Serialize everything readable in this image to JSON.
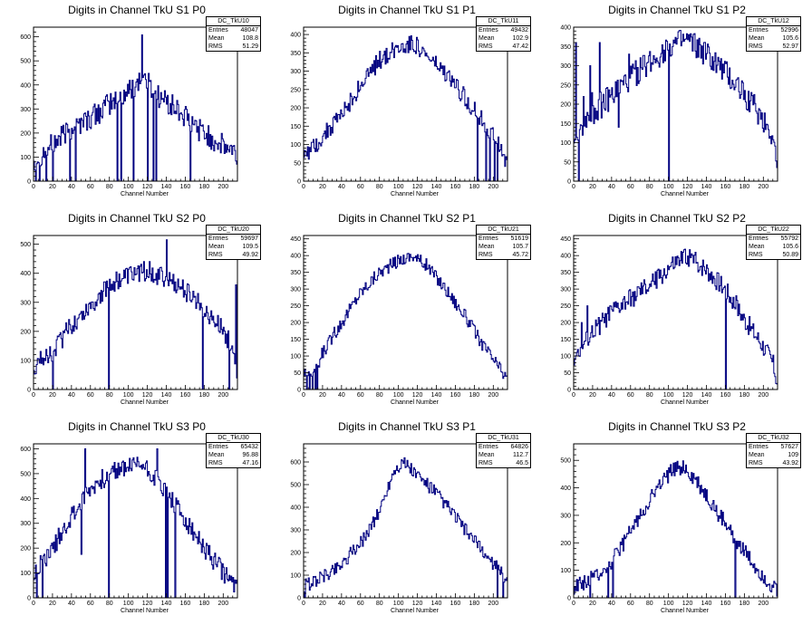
{
  "colors": {
    "histogram": "#000080",
    "axis": "#000000",
    "background": "#ffffff"
  },
  "stats_labels": {
    "entries": "Entries",
    "mean": "Mean",
    "rms": "RMS"
  },
  "chart_data": [
    {
      "type": "histogram",
      "title": "Digits in Channel TkU S1 P0",
      "xlabel": "Channel Number",
      "xlim": [
        0,
        215
      ],
      "ylim": [
        0,
        640
      ],
      "xticks": [
        0,
        20,
        40,
        60,
        80,
        100,
        120,
        140,
        160,
        180,
        200
      ],
      "yticks": [
        0,
        100,
        200,
        300,
        400,
        500,
        600
      ],
      "stats": {
        "name": "DC_TkU10",
        "entries": "48047",
        "mean": "108.8",
        "rms": "51.29"
      },
      "profile": [
        [
          0,
          90
        ],
        [
          20,
          150
        ],
        [
          40,
          220
        ],
        [
          60,
          260
        ],
        [
          80,
          320
        ],
        [
          100,
          370
        ],
        [
          115,
          440
        ],
        [
          130,
          360
        ],
        [
          150,
          300
        ],
        [
          170,
          230
        ],
        [
          190,
          170
        ],
        [
          210,
          120
        ],
        [
          215,
          100
        ]
      ],
      "noise": 50,
      "spikes": [
        [
          2,
          0
        ],
        [
          6,
          0
        ],
        [
          13,
          0
        ],
        [
          17,
          150
        ],
        [
          20,
          0
        ],
        [
          38,
          0
        ],
        [
          40,
          220
        ],
        [
          44,
          0
        ],
        [
          53,
          280
        ],
        [
          88,
          0
        ],
        [
          92,
          0
        ],
        [
          105,
          0
        ],
        [
          114,
          608
        ],
        [
          120,
          0
        ],
        [
          126,
          0
        ],
        [
          129,
          0
        ],
        [
          165,
          0
        ]
      ]
    },
    {
      "type": "histogram",
      "title": "Digits in Channel TkU S1 P1",
      "xlabel": "Channel Number",
      "xlim": [
        0,
        215
      ],
      "ylim": [
        0,
        420
      ],
      "xticks": [
        0,
        20,
        40,
        60,
        80,
        100,
        120,
        140,
        160,
        180,
        200
      ],
      "yticks": [
        0,
        50,
        100,
        150,
        200,
        250,
        300,
        350,
        400
      ],
      "stats": {
        "name": "DC_TkU11",
        "entries": "49432",
        "mean": "102.9",
        "rms": "47.42"
      },
      "profile": [
        [
          0,
          70
        ],
        [
          20,
          120
        ],
        [
          40,
          180
        ],
        [
          60,
          260
        ],
        [
          80,
          330
        ],
        [
          100,
          365
        ],
        [
          115,
          380
        ],
        [
          130,
          340
        ],
        [
          150,
          290
        ],
        [
          170,
          230
        ],
        [
          190,
          160
        ],
        [
          205,
          100
        ],
        [
          215,
          40
        ]
      ],
      "noise": 25,
      "spikes": [
        [
          183,
          0
        ],
        [
          192,
          0
        ],
        [
          196,
          0
        ],
        [
          201,
          0
        ],
        [
          204,
          0
        ]
      ]
    },
    {
      "type": "histogram",
      "title": "Digits in Channel TkU S1 P2",
      "xlabel": "Channel Number",
      "xlim": [
        0,
        215
      ],
      "ylim": [
        0,
        400
      ],
      "xticks": [
        0,
        20,
        40,
        60,
        80,
        100,
        120,
        140,
        160,
        180,
        200
      ],
      "yticks": [
        0,
        50,
        100,
        150,
        200,
        250,
        300,
        350,
        400
      ],
      "stats": {
        "name": "DC_TkU12",
        "entries": "52996",
        "mean": "105.6",
        "rms": "52.97"
      },
      "profile": [
        [
          0,
          110
        ],
        [
          20,
          180
        ],
        [
          40,
          220
        ],
        [
          60,
          270
        ],
        [
          80,
          310
        ],
        [
          100,
          350
        ],
        [
          120,
          365
        ],
        [
          140,
          330
        ],
        [
          160,
          280
        ],
        [
          180,
          230
        ],
        [
          200,
          160
        ],
        [
          210,
          120
        ],
        [
          215,
          30
        ]
      ],
      "noise": 35,
      "spikes": [
        [
          2,
          360
        ],
        [
          5,
          0
        ],
        [
          10,
          220
        ],
        [
          13,
          140
        ],
        [
          17,
          300
        ],
        [
          19,
          230
        ],
        [
          27,
          360
        ],
        [
          47,
          140
        ],
        [
          58,
          330
        ],
        [
          100,
          0
        ]
      ]
    },
    {
      "type": "histogram",
      "title": "Digits in Channel TkU S2 P0",
      "xlabel": "Channel Number",
      "xlim": [
        0,
        215
      ],
      "ylim": [
        0,
        530
      ],
      "xticks": [
        0,
        20,
        40,
        60,
        80,
        100,
        120,
        140,
        160,
        180,
        200
      ],
      "yticks": [
        0,
        100,
        200,
        300,
        400,
        500
      ],
      "stats": {
        "name": "DC_TkU20",
        "entries": "59697",
        "mean": "109.5",
        "rms": "49.92"
      },
      "profile": [
        [
          0,
          80
        ],
        [
          20,
          130
        ],
        [
          40,
          220
        ],
        [
          60,
          290
        ],
        [
          80,
          360
        ],
        [
          100,
          390
        ],
        [
          120,
          410
        ],
        [
          140,
          380
        ],
        [
          160,
          340
        ],
        [
          180,
          280
        ],
        [
          200,
          200
        ],
        [
          210,
          150
        ],
        [
          215,
          60
        ]
      ],
      "noise": 35,
      "spikes": [
        [
          20,
          0
        ],
        [
          79,
          0
        ],
        [
          140,
          515
        ],
        [
          178,
          0
        ],
        [
          206,
          0
        ],
        [
          213,
          360
        ]
      ]
    },
    {
      "type": "histogram",
      "title": "Digits in Channel TkU S2 P1",
      "xlabel": "Channel Number",
      "xlim": [
        0,
        215
      ],
      "ylim": [
        0,
        460
      ],
      "xticks": [
        0,
        20,
        40,
        60,
        80,
        100,
        120,
        140,
        160,
        180,
        200
      ],
      "yticks": [
        0,
        50,
        100,
        150,
        200,
        250,
        300,
        350,
        400,
        450
      ],
      "stats": {
        "name": "DC_TkU21",
        "entries": "51619",
        "mean": "105.7",
        "rms": "45.72"
      },
      "profile": [
        [
          0,
          50
        ],
        [
          15,
          60
        ],
        [
          20,
          110
        ],
        [
          40,
          200
        ],
        [
          60,
          290
        ],
        [
          80,
          350
        ],
        [
          100,
          385
        ],
        [
          115,
          400
        ],
        [
          130,
          370
        ],
        [
          150,
          300
        ],
        [
          170,
          220
        ],
        [
          190,
          130
        ],
        [
          205,
          70
        ],
        [
          215,
          30
        ]
      ],
      "noise": 20,
      "spikes": [
        [
          3,
          0
        ],
        [
          6,
          0
        ],
        [
          9,
          0
        ],
        [
          12,
          0
        ],
        [
          14,
          0
        ]
      ]
    },
    {
      "type": "histogram",
      "title": "Digits in Channel TkU S2 P2",
      "xlabel": "Channel Number",
      "xlim": [
        0,
        215
      ],
      "ylim": [
        0,
        460
      ],
      "xticks": [
        0,
        20,
        40,
        60,
        80,
        100,
        120,
        140,
        160,
        180,
        200
      ],
      "yticks": [
        0,
        50,
        100,
        150,
        200,
        250,
        300,
        350,
        400,
        450
      ],
      "stats": {
        "name": "DC_TkU22",
        "entries": "55792",
        "mean": "105.6",
        "rms": "50.89"
      },
      "profile": [
        [
          0,
          90
        ],
        [
          20,
          170
        ],
        [
          40,
          230
        ],
        [
          60,
          270
        ],
        [
          80,
          310
        ],
        [
          100,
          360
        ],
        [
          120,
          400
        ],
        [
          140,
          360
        ],
        [
          160,
          300
        ],
        [
          180,
          210
        ],
        [
          200,
          130
        ],
        [
          210,
          80
        ],
        [
          215,
          20
        ]
      ],
      "noise": 30,
      "spikes": [
        [
          8,
          200
        ],
        [
          14,
          250
        ],
        [
          160,
          0
        ],
        [
          171,
          280
        ]
      ]
    },
    {
      "type": "histogram",
      "title": "Digits in Channel TkU S3 P0",
      "xlabel": "Channel Number",
      "xlim": [
        0,
        215
      ],
      "ylim": [
        0,
        620
      ],
      "xticks": [
        0,
        20,
        40,
        60,
        80,
        100,
        120,
        140,
        160,
        180,
        200
      ],
      "yticks": [
        0,
        100,
        200,
        300,
        400,
        500,
        600
      ],
      "stats": {
        "name": "DC_TkU30",
        "entries": "65432",
        "mean": "96.88",
        "rms": "47.16"
      },
      "profile": [
        [
          0,
          100
        ],
        [
          20,
          200
        ],
        [
          40,
          330
        ],
        [
          60,
          440
        ],
        [
          80,
          500
        ],
        [
          100,
          530
        ],
        [
          115,
          540
        ],
        [
          130,
          480
        ],
        [
          150,
          370
        ],
        [
          170,
          250
        ],
        [
          190,
          150
        ],
        [
          210,
          60
        ],
        [
          215,
          30
        ]
      ],
      "noise": 40,
      "spikes": [
        [
          3,
          0
        ],
        [
          9,
          0
        ],
        [
          50,
          175
        ],
        [
          54,
          600
        ],
        [
          79,
          0
        ],
        [
          130,
          600
        ],
        [
          139,
          0
        ],
        [
          141,
          0
        ],
        [
          149,
          0
        ]
      ]
    },
    {
      "type": "histogram",
      "title": "Digits in Channel TkU S3 P1",
      "xlabel": "Channel Number",
      "xlim": [
        0,
        215
      ],
      "ylim": [
        0,
        680
      ],
      "xticks": [
        0,
        20,
        40,
        60,
        80,
        100,
        120,
        140,
        160,
        180,
        200
      ],
      "yticks": [
        0,
        100,
        200,
        300,
        400,
        500,
        600
      ],
      "stats": {
        "name": "DC_TkU31",
        "entries": "64826",
        "mean": "112.7",
        "rms": "46.5"
      },
      "profile": [
        [
          0,
          50
        ],
        [
          20,
          90
        ],
        [
          40,
          150
        ],
        [
          60,
          240
        ],
        [
          80,
          380
        ],
        [
          95,
          560
        ],
        [
          105,
          600
        ],
        [
          120,
          540
        ],
        [
          140,
          460
        ],
        [
          160,
          360
        ],
        [
          180,
          250
        ],
        [
          200,
          150
        ],
        [
          215,
          80
        ]
      ],
      "noise": 30,
      "spikes": [
        [
          1,
          0
        ],
        [
          204,
          0
        ],
        [
          210,
          0
        ]
      ]
    },
    {
      "type": "histogram",
      "title": "Digits in Channel TkU S3 P2",
      "xlabel": "Channel Number",
      "xlim": [
        0,
        215
      ],
      "ylim": [
        0,
        560
      ],
      "xticks": [
        0,
        20,
        40,
        60,
        80,
        100,
        120,
        140,
        160,
        180,
        200
      ],
      "yticks": [
        0,
        100,
        200,
        300,
        400,
        500
      ],
      "stats": {
        "name": "DC_TkU32",
        "entries": "57627",
        "mean": "109",
        "rms": "43.92"
      },
      "profile": [
        [
          0,
          40
        ],
        [
          20,
          70
        ],
        [
          40,
          130
        ],
        [
          60,
          240
        ],
        [
          80,
          360
        ],
        [
          100,
          450
        ],
        [
          115,
          480
        ],
        [
          130,
          420
        ],
        [
          150,
          320
        ],
        [
          170,
          220
        ],
        [
          190,
          120
        ],
        [
          205,
          60
        ],
        [
          215,
          20
        ]
      ],
      "noise": 30,
      "spikes": [
        [
          17,
          0
        ],
        [
          36,
          0
        ],
        [
          41,
          0
        ],
        [
          170,
          0
        ]
      ]
    }
  ]
}
